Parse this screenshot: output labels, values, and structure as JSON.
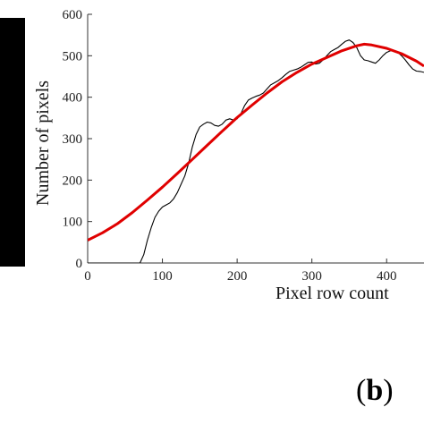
{
  "panel_label": "b",
  "chart_data": {
    "type": "line",
    "title": "",
    "xlabel": "Pixel row count",
    "ylabel": "Number of pixels",
    "xlim": [
      0,
      450
    ],
    "ylim": [
      0,
      600
    ],
    "x_ticks": [
      "0",
      "100",
      "200",
      "300",
      "400"
    ],
    "y_ticks": [
      "0",
      "100",
      "200",
      "300",
      "400",
      "500",
      "600"
    ],
    "grid": false,
    "series": [
      {
        "color": "#000000",
        "points": [
          [
            0,
            0
          ],
          [
            20,
            0
          ],
          [
            40,
            0
          ],
          [
            60,
            0
          ],
          [
            70,
            0
          ],
          [
            75,
            20
          ],
          [
            80,
            55
          ],
          [
            85,
            85
          ],
          [
            90,
            110
          ],
          [
            95,
            125
          ],
          [
            100,
            135
          ],
          [
            105,
            140
          ],
          [
            110,
            145
          ],
          [
            115,
            155
          ],
          [
            120,
            170
          ],
          [
            125,
            190
          ],
          [
            130,
            210
          ],
          [
            135,
            240
          ],
          [
            140,
            280
          ],
          [
            145,
            310
          ],
          [
            150,
            328
          ],
          [
            155,
            335
          ],
          [
            160,
            340
          ],
          [
            165,
            338
          ],
          [
            170,
            332
          ],
          [
            175,
            330
          ],
          [
            180,
            335
          ],
          [
            185,
            345
          ],
          [
            190,
            348
          ],
          [
            195,
            345
          ],
          [
            200,
            348
          ],
          [
            205,
            360
          ],
          [
            210,
            380
          ],
          [
            215,
            393
          ],
          [
            220,
            398
          ],
          [
            225,
            402
          ],
          [
            230,
            405
          ],
          [
            235,
            410
          ],
          [
            240,
            420
          ],
          [
            245,
            430
          ],
          [
            250,
            435
          ],
          [
            255,
            440
          ],
          [
            260,
            447
          ],
          [
            265,
            455
          ],
          [
            270,
            462
          ],
          [
            275,
            465
          ],
          [
            280,
            468
          ],
          [
            285,
            472
          ],
          [
            290,
            478
          ],
          [
            295,
            484
          ],
          [
            300,
            485
          ],
          [
            305,
            480
          ],
          [
            310,
            482
          ],
          [
            315,
            490
          ],
          [
            320,
            500
          ],
          [
            325,
            510
          ],
          [
            330,
            515
          ],
          [
            335,
            520
          ],
          [
            340,
            528
          ],
          [
            345,
            535
          ],
          [
            350,
            538
          ],
          [
            355,
            532
          ],
          [
            360,
            520
          ],
          [
            365,
            500
          ],
          [
            370,
            490
          ],
          [
            375,
            488
          ],
          [
            380,
            485
          ],
          [
            385,
            482
          ],
          [
            390,
            490
          ],
          [
            395,
            500
          ],
          [
            400,
            508
          ],
          [
            405,
            512
          ],
          [
            410,
            512
          ],
          [
            415,
            508
          ],
          [
            420,
            500
          ],
          [
            425,
            490
          ],
          [
            430,
            478
          ],
          [
            435,
            468
          ],
          [
            440,
            463
          ],
          [
            445,
            462
          ],
          [
            450,
            460
          ]
        ]
      },
      {
        "color": "#e00000",
        "points": [
          [
            0,
            55
          ],
          [
            20,
            73
          ],
          [
            40,
            95
          ],
          [
            60,
            122
          ],
          [
            80,
            152
          ],
          [
            100,
            183
          ],
          [
            120,
            216
          ],
          [
            140,
            250
          ],
          [
            160,
            284
          ],
          [
            180,
            318
          ],
          [
            200,
            351
          ],
          [
            220,
            381
          ],
          [
            240,
            410
          ],
          [
            260,
            437
          ],
          [
            280,
            460
          ],
          [
            300,
            480
          ],
          [
            320,
            496
          ],
          [
            340,
            512
          ],
          [
            360,
            524
          ],
          [
            370,
            528
          ],
          [
            380,
            526
          ],
          [
            400,
            518
          ],
          [
            420,
            505
          ],
          [
            440,
            487
          ],
          [
            450,
            475
          ]
        ]
      }
    ]
  }
}
